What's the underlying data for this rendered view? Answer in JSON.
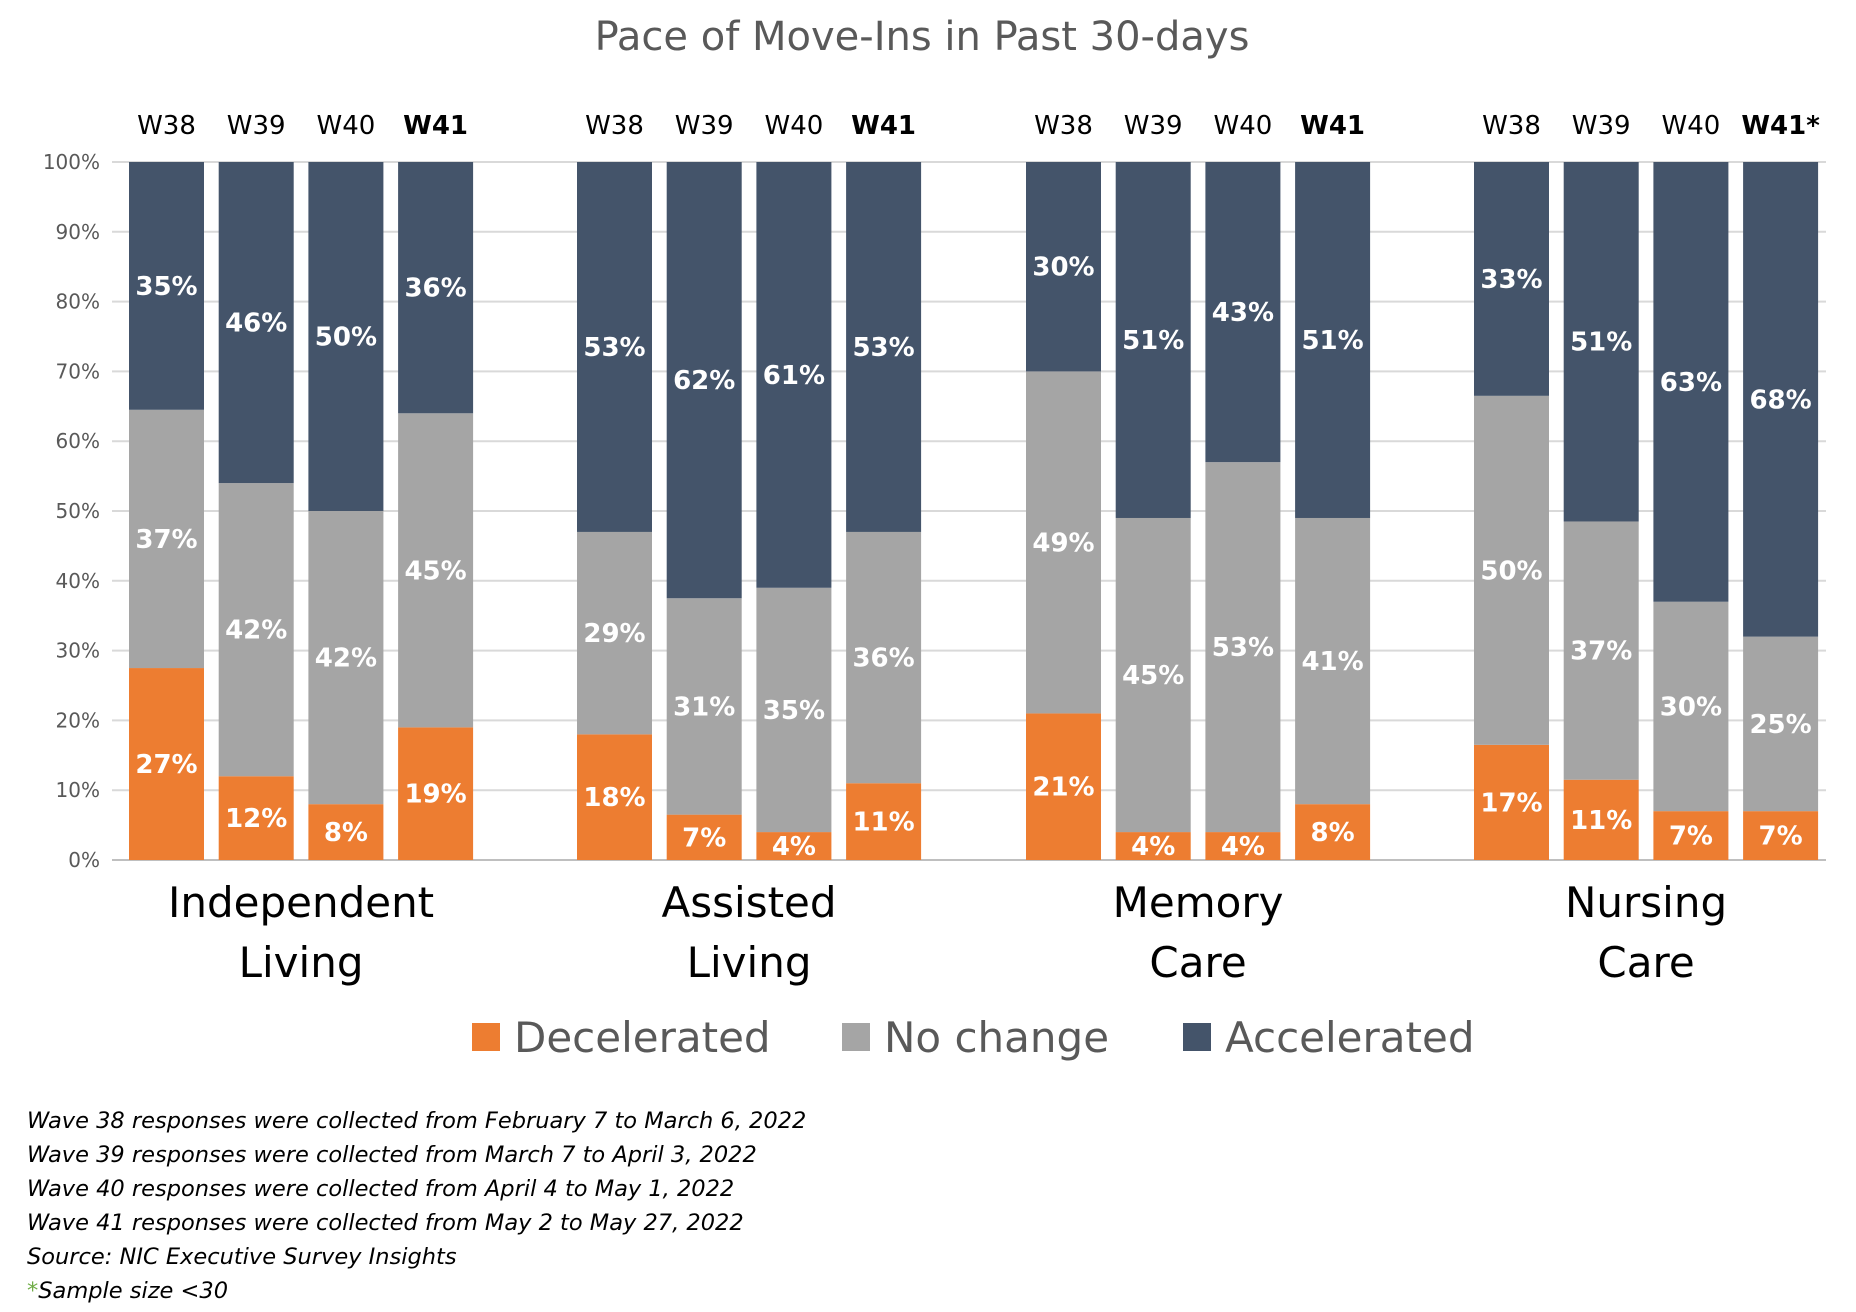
{
  "chart_data": {
    "type": "stacked-bar-100",
    "title": "Pace of Move-Ins in Past 30-days",
    "ylim": [
      0,
      100
    ],
    "yticks": [
      "0%",
      "10%",
      "20%",
      "30%",
      "40%",
      "50%",
      "60%",
      "70%",
      "80%",
      "90%",
      "100%"
    ],
    "grid": true,
    "legend_position": "bottom",
    "series": [
      {
        "name": "Decelerated",
        "color": "#ed7d31"
      },
      {
        "name": "No change",
        "color": "#a5a5a5"
      },
      {
        "name": "Accelerated",
        "color": "#44546a"
      }
    ],
    "groups": [
      {
        "name_lines": [
          "Independent",
          "Living"
        ],
        "bars": [
          {
            "wave": "W38",
            "highlight": false,
            "values": [
              27,
              37,
              35
            ],
            "stack": [
              27.5,
              37,
              35.5
            ]
          },
          {
            "wave": "W39",
            "highlight": false,
            "values": [
              12,
              42,
              46
            ],
            "stack": [
              12,
              42,
              46
            ]
          },
          {
            "wave": "W40",
            "highlight": false,
            "values": [
              8,
              42,
              50
            ],
            "stack": [
              8,
              42,
              50
            ]
          },
          {
            "wave": "W41",
            "highlight": true,
            "values": [
              19,
              45,
              36
            ],
            "stack": [
              19,
              45,
              36
            ]
          }
        ]
      },
      {
        "name_lines": [
          "Assisted",
          "Living"
        ],
        "bars": [
          {
            "wave": "W38",
            "highlight": false,
            "values": [
              18,
              29,
              53
            ],
            "stack": [
              18,
              29,
              53
            ]
          },
          {
            "wave": "W39",
            "highlight": false,
            "values": [
              7,
              31,
              62
            ],
            "stack": [
              6.5,
              31,
              62.5
            ]
          },
          {
            "wave": "W40",
            "highlight": false,
            "values": [
              4,
              35,
              61
            ],
            "stack": [
              4,
              35,
              61
            ]
          },
          {
            "wave": "W41",
            "highlight": true,
            "values": [
              11,
              36,
              53
            ],
            "stack": [
              11,
              36,
              53
            ]
          }
        ]
      },
      {
        "name_lines": [
          "Memory",
          "Care"
        ],
        "bars": [
          {
            "wave": "W38",
            "highlight": false,
            "values": [
              21,
              49,
              30
            ],
            "stack": [
              21,
              49,
              30
            ]
          },
          {
            "wave": "W39",
            "highlight": false,
            "values": [
              4,
              45,
              51
            ],
            "stack": [
              4,
              45,
              51
            ]
          },
          {
            "wave": "W40",
            "highlight": false,
            "values": [
              4,
              53,
              43
            ],
            "stack": [
              4,
              53,
              43
            ]
          },
          {
            "wave": "W41",
            "highlight": true,
            "values": [
              8,
              41,
              51
            ],
            "stack": [
              8,
              41,
              51
            ]
          }
        ]
      },
      {
        "name_lines": [
          "Nursing",
          "Care"
        ],
        "bars": [
          {
            "wave": "W38",
            "highlight": false,
            "values": [
              17,
              50,
              33
            ],
            "stack": [
              16.5,
              50,
              33.5
            ]
          },
          {
            "wave": "W39",
            "highlight": false,
            "values": [
              11,
              37,
              51
            ],
            "stack": [
              11.5,
              37,
              51.5
            ]
          },
          {
            "wave": "W40",
            "highlight": false,
            "values": [
              7,
              30,
              63
            ],
            "stack": [
              7,
              30,
              63
            ]
          },
          {
            "wave": "W41",
            "highlight": true,
            "values": [
              7,
              25,
              68
            ],
            "stack": [
              7,
              25,
              68
            ],
            "asterisk": true
          }
        ]
      }
    ],
    "highlight_color": "#70ad47"
  },
  "notes": {
    "lines": [
      "Wave 38 responses were collected from February 7 to March 6, 2022",
      "Wave 39 responses were collected from March 7 to April 3, 2022",
      "Wave 40 responses were collected from April 4 to May 1, 2022",
      "Wave 41 responses were collected from May 2 to May 27, 2022",
      "Source: NIC Executive Survey Insights"
    ],
    "asterisk": "*",
    "sample_note": "Sample size <30"
  }
}
